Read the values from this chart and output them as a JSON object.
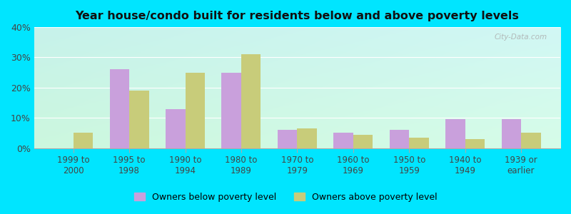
{
  "title": "Year house/condo built for residents below and above poverty levels",
  "categories": [
    "1999 to\n2000",
    "1995 to\n1998",
    "1990 to\n1994",
    "1980 to\n1989",
    "1970 to\n1979",
    "1960 to\n1969",
    "1950 to\n1959",
    "1940 to\n1949",
    "1939 or\nearlier"
  ],
  "below_poverty": [
    0,
    26,
    13,
    25,
    6,
    5,
    6,
    9.5,
    9.5
  ],
  "above_poverty": [
    5,
    19,
    25,
    31,
    6.5,
    4.5,
    3.5,
    3,
    5
  ],
  "below_color": "#c9a0dc",
  "above_color": "#c8cc7a",
  "ylim": [
    0,
    40
  ],
  "yticks": [
    0,
    10,
    20,
    30,
    40
  ],
  "ytick_labels": [
    "0%",
    "10%",
    "20%",
    "30%",
    "40%"
  ],
  "outer_background": "#00e5ff",
  "legend_below": "Owners below poverty level",
  "legend_above": "Owners above poverty level",
  "bar_width": 0.35,
  "grad_topleft": [
    0.78,
    0.95,
    0.92
  ],
  "grad_topright": [
    0.82,
    0.97,
    0.96
  ],
  "grad_bottomleft": [
    0.8,
    0.97,
    0.87
  ],
  "grad_bottomright": [
    0.84,
    0.99,
    0.91
  ]
}
